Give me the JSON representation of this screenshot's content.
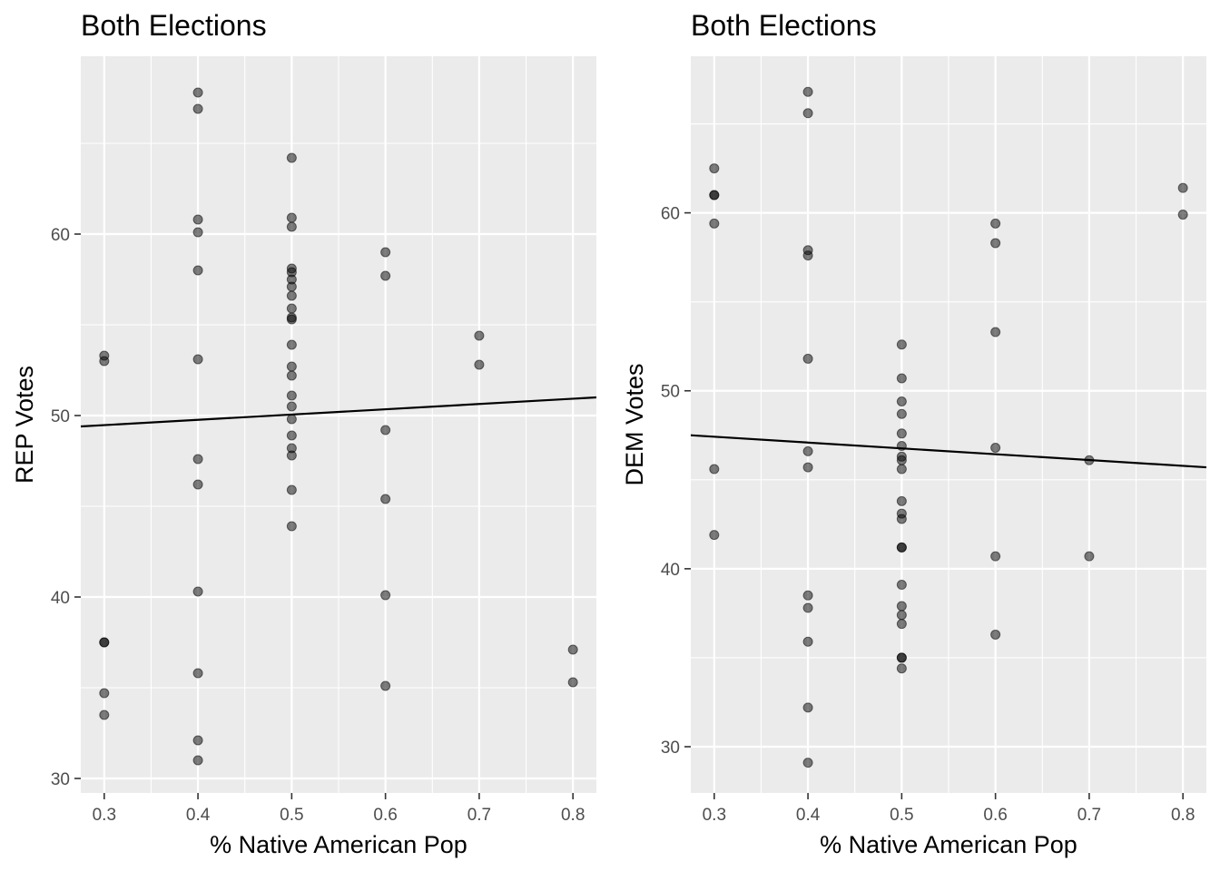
{
  "chart_data": [
    {
      "type": "scatter",
      "title": "Both Elections",
      "xlabel": "% Native American Pop",
      "ylabel": "REP Votes",
      "xlim": [
        0.275,
        0.825
      ],
      "ylim": [
        29.2,
        69.8
      ],
      "x_ticks": [
        0.3,
        0.4,
        0.5,
        0.6,
        0.7,
        0.8
      ],
      "x_tick_labels": [
        "0.3",
        "0.4",
        "0.5",
        "0.6",
        "0.7",
        "0.8"
      ],
      "y_ticks": [
        30,
        40,
        50,
        60
      ],
      "y_tick_labels": [
        "30",
        "40",
        "50",
        "60"
      ],
      "grid": true,
      "point_color": "#000000",
      "panel_color": "#ebebeb",
      "points": [
        {
          "x": 0.3,
          "y": 53.3
        },
        {
          "x": 0.3,
          "y": 53.0
        },
        {
          "x": 0.3,
          "y": 37.5
        },
        {
          "x": 0.3,
          "y": 37.5
        },
        {
          "x": 0.3,
          "y": 34.7
        },
        {
          "x": 0.3,
          "y": 33.5
        },
        {
          "x": 0.4,
          "y": 67.8
        },
        {
          "x": 0.4,
          "y": 66.9
        },
        {
          "x": 0.4,
          "y": 60.8
        },
        {
          "x": 0.4,
          "y": 60.1
        },
        {
          "x": 0.4,
          "y": 58.0
        },
        {
          "x": 0.4,
          "y": 53.1
        },
        {
          "x": 0.4,
          "y": 47.6
        },
        {
          "x": 0.4,
          "y": 46.2
        },
        {
          "x": 0.4,
          "y": 40.3
        },
        {
          "x": 0.4,
          "y": 35.8
        },
        {
          "x": 0.4,
          "y": 32.1
        },
        {
          "x": 0.4,
          "y": 31.0
        },
        {
          "x": 0.5,
          "y": 64.2
        },
        {
          "x": 0.5,
          "y": 60.9
        },
        {
          "x": 0.5,
          "y": 60.4
        },
        {
          "x": 0.5,
          "y": 58.1
        },
        {
          "x": 0.5,
          "y": 57.9
        },
        {
          "x": 0.5,
          "y": 57.5
        },
        {
          "x": 0.5,
          "y": 57.1
        },
        {
          "x": 0.5,
          "y": 56.6
        },
        {
          "x": 0.5,
          "y": 55.9
        },
        {
          "x": 0.5,
          "y": 55.4
        },
        {
          "x": 0.5,
          "y": 55.3
        },
        {
          "x": 0.5,
          "y": 53.9
        },
        {
          "x": 0.5,
          "y": 52.7
        },
        {
          "x": 0.5,
          "y": 52.2
        },
        {
          "x": 0.5,
          "y": 51.1
        },
        {
          "x": 0.5,
          "y": 50.5
        },
        {
          "x": 0.5,
          "y": 49.8
        },
        {
          "x": 0.5,
          "y": 48.9
        },
        {
          "x": 0.5,
          "y": 48.2
        },
        {
          "x": 0.5,
          "y": 47.8
        },
        {
          "x": 0.5,
          "y": 45.9
        },
        {
          "x": 0.5,
          "y": 43.9
        },
        {
          "x": 0.6,
          "y": 59.0
        },
        {
          "x": 0.6,
          "y": 57.7
        },
        {
          "x": 0.6,
          "y": 49.2
        },
        {
          "x": 0.6,
          "y": 45.4
        },
        {
          "x": 0.6,
          "y": 40.1
        },
        {
          "x": 0.6,
          "y": 35.1
        },
        {
          "x": 0.7,
          "y": 54.4
        },
        {
          "x": 0.7,
          "y": 52.8
        },
        {
          "x": 0.8,
          "y": 37.1
        },
        {
          "x": 0.8,
          "y": 35.3
        }
      ],
      "trend_line": {
        "x": [
          0.275,
          0.825
        ],
        "y": [
          49.4,
          51.0
        ]
      }
    },
    {
      "type": "scatter",
      "title": "Both Elections",
      "xlabel": "% Native American Pop",
      "ylabel": "DEM Votes",
      "xlim": [
        0.275,
        0.825
      ],
      "ylim": [
        27.4,
        68.8
      ],
      "x_ticks": [
        0.3,
        0.4,
        0.5,
        0.6,
        0.7,
        0.8
      ],
      "x_tick_labels": [
        "0.3",
        "0.4",
        "0.5",
        "0.6",
        "0.7",
        "0.8"
      ],
      "y_ticks": [
        30,
        40,
        50,
        60
      ],
      "y_tick_labels": [
        "30",
        "40",
        "50",
        "60"
      ],
      "grid": true,
      "point_color": "#000000",
      "panel_color": "#ebebeb",
      "points": [
        {
          "x": 0.3,
          "y": 62.5
        },
        {
          "x": 0.3,
          "y": 61.0
        },
        {
          "x": 0.3,
          "y": 61.0
        },
        {
          "x": 0.3,
          "y": 59.4
        },
        {
          "x": 0.3,
          "y": 45.6
        },
        {
          "x": 0.3,
          "y": 41.9
        },
        {
          "x": 0.4,
          "y": 66.8
        },
        {
          "x": 0.4,
          "y": 65.6
        },
        {
          "x": 0.4,
          "y": 57.9
        },
        {
          "x": 0.4,
          "y": 57.6
        },
        {
          "x": 0.4,
          "y": 51.8
        },
        {
          "x": 0.4,
          "y": 46.6
        },
        {
          "x": 0.4,
          "y": 45.7
        },
        {
          "x": 0.4,
          "y": 38.5
        },
        {
          "x": 0.4,
          "y": 37.8
        },
        {
          "x": 0.4,
          "y": 35.9
        },
        {
          "x": 0.4,
          "y": 32.2
        },
        {
          "x": 0.4,
          "y": 29.1
        },
        {
          "x": 0.5,
          "y": 52.6
        },
        {
          "x": 0.5,
          "y": 50.7
        },
        {
          "x": 0.5,
          "y": 49.4
        },
        {
          "x": 0.5,
          "y": 48.7
        },
        {
          "x": 0.5,
          "y": 47.6
        },
        {
          "x": 0.5,
          "y": 46.9
        },
        {
          "x": 0.5,
          "y": 46.3
        },
        {
          "x": 0.5,
          "y": 46.1
        },
        {
          "x": 0.5,
          "y": 45.6
        },
        {
          "x": 0.5,
          "y": 43.8
        },
        {
          "x": 0.5,
          "y": 43.1
        },
        {
          "x": 0.5,
          "y": 42.8
        },
        {
          "x": 0.5,
          "y": 41.2
        },
        {
          "x": 0.5,
          "y": 41.2
        },
        {
          "x": 0.5,
          "y": 39.1
        },
        {
          "x": 0.5,
          "y": 37.9
        },
        {
          "x": 0.5,
          "y": 37.4
        },
        {
          "x": 0.5,
          "y": 36.9
        },
        {
          "x": 0.5,
          "y": 35.0
        },
        {
          "x": 0.5,
          "y": 35.0
        },
        {
          "x": 0.5,
          "y": 34.4
        },
        {
          "x": 0.6,
          "y": 59.4
        },
        {
          "x": 0.6,
          "y": 58.3
        },
        {
          "x": 0.6,
          "y": 53.3
        },
        {
          "x": 0.6,
          "y": 46.8
        },
        {
          "x": 0.6,
          "y": 40.7
        },
        {
          "x": 0.6,
          "y": 36.3
        },
        {
          "x": 0.7,
          "y": 46.1
        },
        {
          "x": 0.7,
          "y": 40.7
        },
        {
          "x": 0.8,
          "y": 61.4
        },
        {
          "x": 0.8,
          "y": 59.9
        }
      ],
      "trend_line": {
        "x": [
          0.275,
          0.825
        ],
        "y": [
          47.5,
          45.7
        ]
      }
    }
  ]
}
